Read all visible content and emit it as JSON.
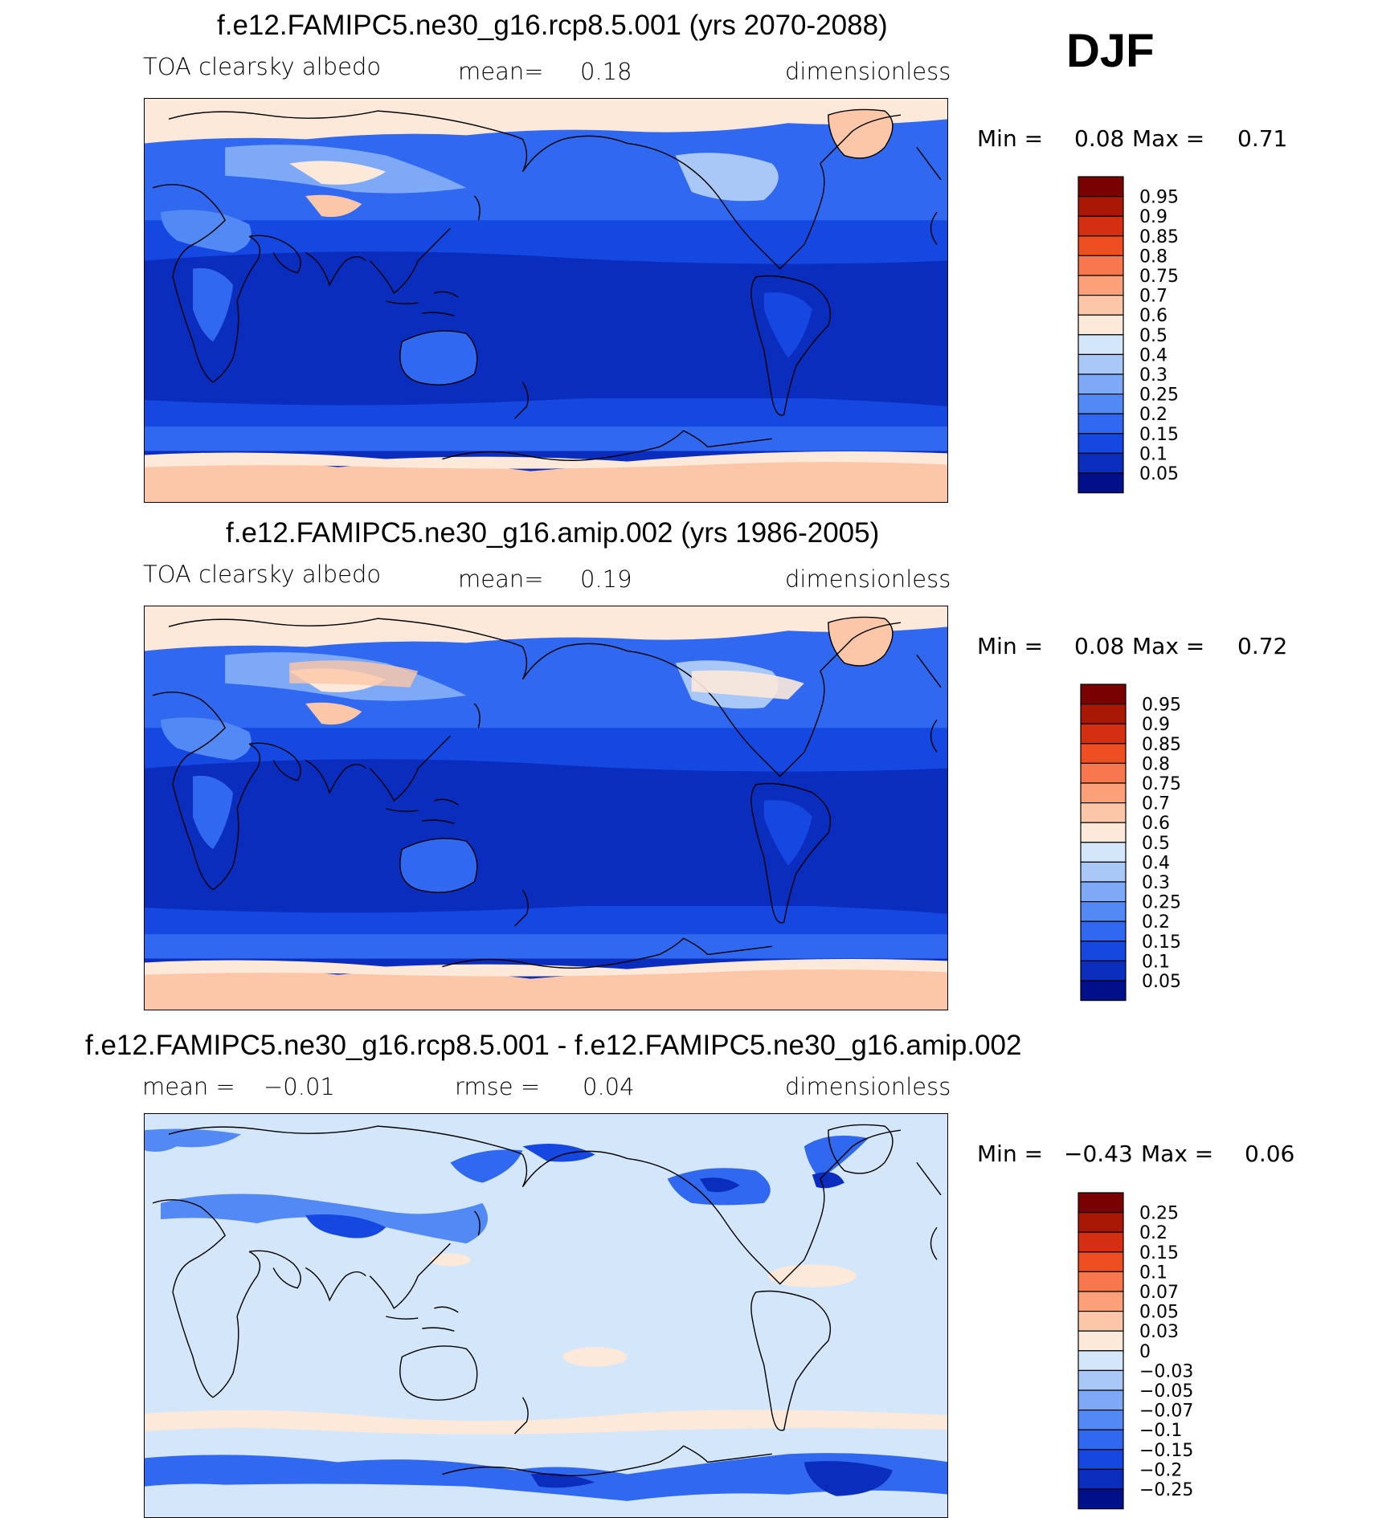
{
  "season": "DJF",
  "colors": {
    "scale": [
      "#000f8a",
      "#0a2dbe",
      "#1548e0",
      "#3168f0",
      "#5389f4",
      "#7ea9f6",
      "#a9c8f8",
      "#d4e6fa",
      "#fde9d9",
      "#fcc7a8",
      "#fba078",
      "#f7784c",
      "#ef4e23",
      "#d42f10",
      "#a81804",
      "#7a0101"
    ],
    "ocean_low": "#0a2dbe",
    "ocean_mid": "#1548e0",
    "diff_bg": "#d4e6fa"
  },
  "panels": [
    {
      "title": "f.e12.FAMIPC5.ne30_g16.rcp8.5.001 (yrs 2070-2088)",
      "variable": "TOA clearsky albedo",
      "mean_label": "mean=",
      "mean_value": "0.18",
      "units": "dimensionless",
      "min_label": "Min =",
      "min_value": "0.08",
      "max_label": "Max =",
      "max_value": "0.71",
      "colorbar_labels": [
        "0.95",
        "0.9",
        "0.85",
        "0.8",
        "0.75",
        "0.7",
        "0.6",
        "0.5",
        "0.4",
        "0.3",
        "0.25",
        "0.2",
        "0.15",
        "0.1",
        "0.05"
      ]
    },
    {
      "title": "f.e12.FAMIPC5.ne30_g16.amip.002 (yrs 1986-2005)",
      "variable": "TOA clearsky albedo",
      "mean_label": "mean=",
      "mean_value": "0.19",
      "units": "dimensionless",
      "min_label": "Min =",
      "min_value": "0.08",
      "max_label": "Max =",
      "max_value": "0.72",
      "colorbar_labels": [
        "0.95",
        "0.9",
        "0.85",
        "0.8",
        "0.75",
        "0.7",
        "0.6",
        "0.5",
        "0.4",
        "0.3",
        "0.25",
        "0.2",
        "0.15",
        "0.1",
        "0.05"
      ]
    },
    {
      "title": "f.e12.FAMIPC5.ne30_g16.rcp8.5.001 - f.e12.FAMIPC5.ne30_g16.amip.002",
      "mean_label": "mean =",
      "mean_value": "−0.01",
      "rmse_label": "rmse =",
      "rmse_value": "0.04",
      "units": "dimensionless",
      "min_label": "Min =",
      "min_value": "−0.43",
      "max_label": "Max =",
      "max_value": "0.06",
      "colorbar_labels": [
        "0.25",
        "0.2",
        "0.15",
        "0.1",
        "0.07",
        "0.05",
        "0.03",
        "0",
        "−0.03",
        "−0.05",
        "−0.07",
        "−0.1",
        "−0.15",
        "−0.2",
        "−0.25"
      ]
    }
  ]
}
